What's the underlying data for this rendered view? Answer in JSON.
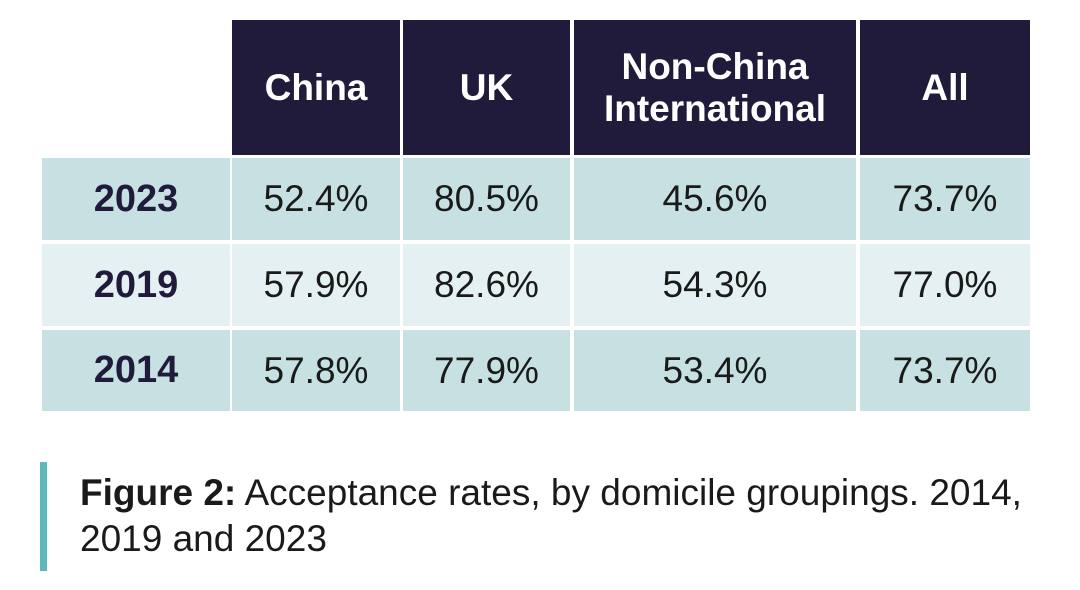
{
  "chart_data": {
    "type": "table",
    "columns": [
      "China",
      "UK",
      "Non-China International",
      "All"
    ],
    "rows": [
      {
        "year": "2023",
        "values": [
          "52.4%",
          "80.5%",
          "45.6%",
          "73.7%"
        ]
      },
      {
        "year": "2019",
        "values": [
          "57.9%",
          "82.6%",
          "54.3%",
          "77.0%"
        ]
      },
      {
        "year": "2014",
        "values": [
          "57.8%",
          "77.9%",
          "53.4%",
          "73.7%"
        ]
      }
    ],
    "caption_label": "Figure 2:",
    "caption_text": " Acceptance rates, by domicile groupings. 2014, 2019 and 2023"
  },
  "colors": {
    "header": "#211b3b",
    "row_dark": "#c7e1e2",
    "row_light": "#e4f0f1",
    "accent": "#5bb8bb"
  }
}
